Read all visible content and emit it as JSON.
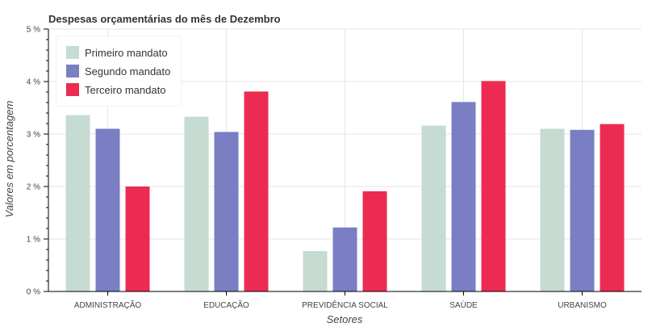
{
  "colors": {
    "primeiro": "#c6dbd2",
    "segundo": "#797fc2",
    "terceiro": "#ec2b52",
    "grid": "#e6e6e6",
    "axis": "#000000"
  },
  "chart_data": {
    "type": "bar",
    "title": "Despesas orçamentárias do mês de Dezembro",
    "xlabel": "Setores",
    "ylabel": "Valores em porcentagem",
    "categories": [
      "ADMINISTRAÇÃO",
      "EDUCAÇÃO",
      "PREVIDÊNCIA SOCIAL",
      "SAÚDE",
      "URBANISMO"
    ],
    "series": [
      {
        "name": "Primeiro mandato",
        "color": "#c6dbd2",
        "values": [
          3.36,
          3.33,
          0.77,
          3.16,
          3.1
        ]
      },
      {
        "name": "Segundo mandato",
        "color": "#797fc2",
        "values": [
          3.1,
          3.04,
          1.22,
          3.61,
          3.08
        ]
      },
      {
        "name": "Terceiro mandato",
        "color": "#ec2b52",
        "values": [
          2.0,
          3.81,
          1.91,
          4.01,
          3.19
        ]
      }
    ],
    "ylim": [
      0,
      5
    ],
    "yticks": [
      0,
      1,
      2,
      3,
      4,
      5
    ],
    "ytick_labels": [
      "0 %",
      "1 %",
      "2 %",
      "3 %",
      "4 %",
      "5 %"
    ],
    "grid": true,
    "legend_position": "top-left"
  }
}
